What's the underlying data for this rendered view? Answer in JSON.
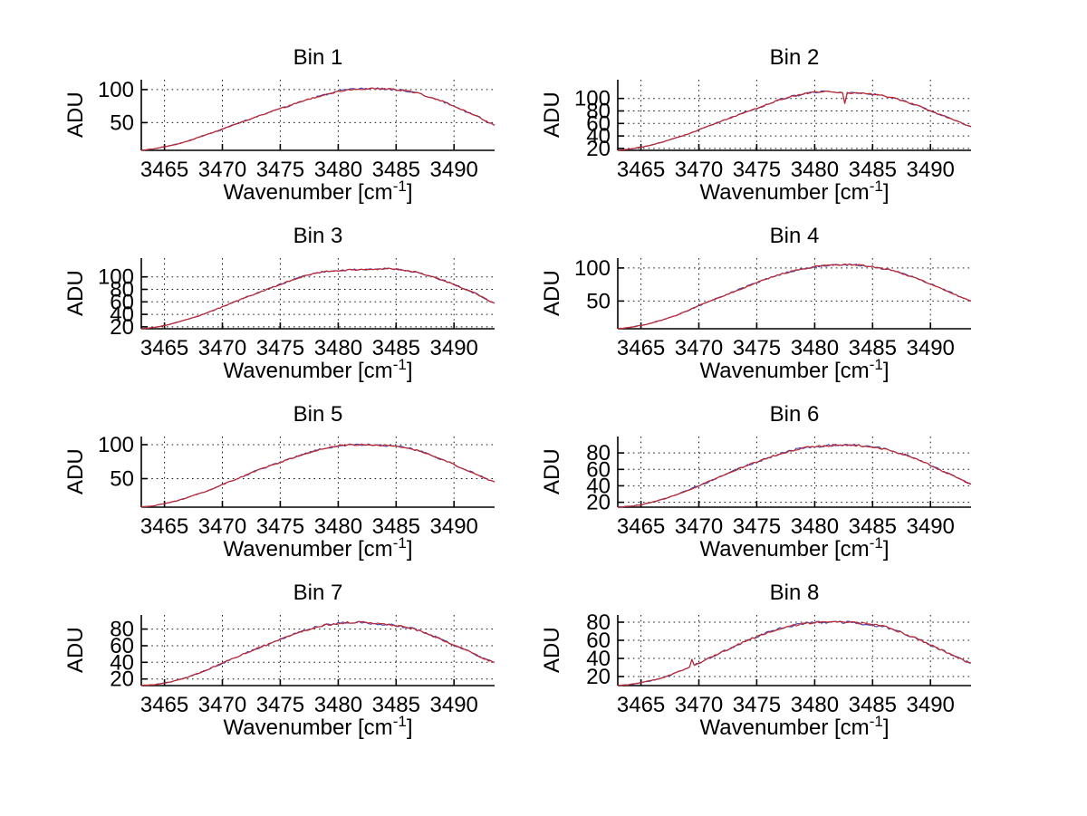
{
  "labels": {
    "ylabel": "ADU",
    "xlabel_main": "Wavenumber [cm",
    "xlabel_sup": "-1",
    "xlabel_end": "]"
  },
  "style": {
    "background": "#ffffff",
    "line_color": "#c62828",
    "line_under_color": "#4040b0",
    "axis_color": "#000000",
    "grid_color": "#1a1a1a",
    "text_color": "#000000",
    "noise_amp": 1.1
  },
  "chart_data": {
    "type": "line",
    "xlabel": "Wavenumber [cm-1]",
    "ylabel": "ADU",
    "grid": true,
    "xlim": [
      3463,
      3493.5
    ],
    "xticks": [
      3465,
      3470,
      3475,
      3480,
      3485,
      3490
    ],
    "x": [
      3463,
      3464,
      3465,
      3466,
      3467,
      3468,
      3469,
      3470,
      3471,
      3472,
      3473,
      3474,
      3475,
      3476,
      3477,
      3478,
      3479,
      3480,
      3481,
      3482,
      3483,
      3484,
      3485,
      3486,
      3487,
      3488,
      3489,
      3490,
      3491,
      3492,
      3493,
      3493.5
    ],
    "subplots": [
      {
        "title": "Bin 1",
        "ylim": [
          8,
          115
        ],
        "yticks": [
          50,
          100
        ],
        "y": [
          8,
          10,
          13.5,
          17,
          22,
          28,
          34,
          40,
          47,
          53,
          59,
          65,
          71,
          77,
          83,
          88,
          93,
          97,
          100,
          101,
          102,
          101,
          100,
          98,
          94,
          88,
          82,
          75,
          67,
          60,
          50,
          46
        ]
      },
      {
        "title": "Bin 2",
        "ylim": [
          17,
          130
        ],
        "yticks": [
          20,
          40,
          60,
          80,
          100
        ],
        "y": [
          17,
          19,
          22,
          26,
          31,
          37,
          43,
          50,
          57,
          64,
          71,
          78,
          84,
          91,
          98,
          103,
          107,
          110,
          111,
          110,
          109,
          108,
          107,
          104,
          100,
          94,
          88,
          80,
          73,
          66,
          58,
          55
        ],
        "spikes": [
          [
            3482.6,
            92
          ]
        ]
      },
      {
        "title": "Bin 3",
        "ylim": [
          17,
          130
        ],
        "yticks": [
          20,
          40,
          60,
          80,
          100
        ],
        "y": [
          17,
          19,
          22,
          27,
          32,
          38,
          45,
          52,
          60,
          67,
          74,
          81,
          88,
          95,
          101,
          106,
          109,
          110,
          111,
          112,
          112,
          113,
          112,
          110,
          107,
          101,
          95,
          88,
          80,
          72,
          62,
          58
        ]
      },
      {
        "title": "Bin 4",
        "ylim": [
          8,
          115
        ],
        "yticks": [
          50,
          100
        ],
        "y": [
          8,
          10,
          13,
          17,
          22,
          28,
          35,
          43,
          50,
          57,
          64,
          71,
          78,
          84,
          90,
          95,
          99,
          102,
          104,
          105,
          105,
          104,
          102,
          99,
          95,
          89,
          83,
          76,
          68,
          61,
          53,
          50
        ]
      },
      {
        "title": "Bin 5",
        "ylim": [
          8,
          112
        ],
        "yticks": [
          50,
          100
        ],
        "y": [
          8,
          10,
          13,
          17,
          22,
          28,
          34,
          41,
          48,
          55,
          62,
          68,
          74,
          80,
          86,
          91,
          95,
          98,
          100,
          100,
          100,
          99,
          98,
          95,
          91,
          85,
          78,
          71,
          63,
          56,
          48,
          45
        ]
      },
      {
        "title": "Bin 6",
        "ylim": [
          14,
          100
        ],
        "yticks": [
          20,
          40,
          60,
          80
        ],
        "y": [
          14,
          15,
          17,
          20,
          24,
          29,
          34,
          40,
          46,
          52,
          58,
          64,
          69,
          74,
          79,
          83,
          86,
          88,
          89,
          90,
          90,
          89,
          87,
          85,
          81,
          77,
          71,
          65,
          58,
          52,
          45,
          42
        ]
      },
      {
        "title": "Bin 7",
        "ylim": [
          12,
          97
        ],
        "yticks": [
          20,
          40,
          60,
          80
        ],
        "y": [
          12,
          13,
          15,
          18,
          22,
          27,
          33,
          39,
          45,
          51,
          57,
          62,
          68,
          73,
          78,
          82,
          85,
          87,
          88,
          88,
          87,
          86,
          84,
          82,
          78,
          73,
          67,
          61,
          55,
          48,
          42,
          40
        ]
      },
      {
        "title": "Bin 8",
        "ylim": [
          10,
          88
        ],
        "yticks": [
          20,
          40,
          60,
          80
        ],
        "y": [
          10,
          11,
          13,
          16,
          19,
          24,
          29,
          35,
          41,
          47,
          53,
          59,
          64,
          69,
          73,
          76,
          78,
          80,
          80,
          80,
          80,
          79,
          77,
          75,
          71,
          66,
          61,
          55,
          49,
          43,
          37,
          35
        ],
        "spikes": [
          [
            3469.4,
            39
          ]
        ]
      }
    ]
  }
}
